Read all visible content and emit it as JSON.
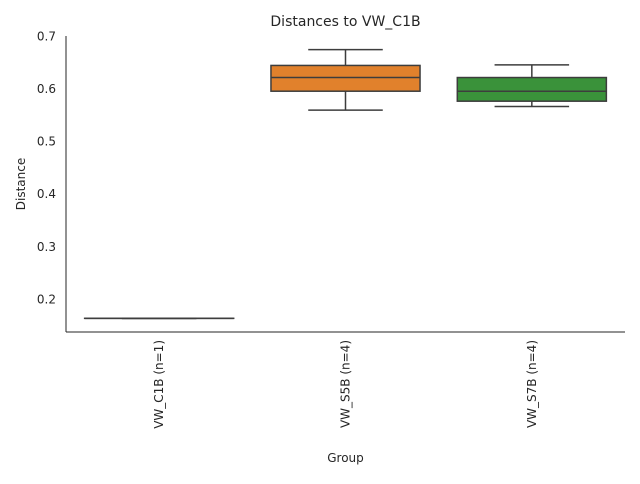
{
  "chart_data": {
    "type": "box",
    "title": "Distances to VW_C1B",
    "xlabel": "Group",
    "ylabel": "Distance",
    "ylim": [
      0.137,
      0.7
    ],
    "yticks": [
      0.2,
      0.3,
      0.4,
      0.5,
      0.6,
      0.7
    ],
    "ytick_labels": [
      "0.2",
      "0.3",
      "0.4",
      "0.5",
      "0.6",
      "0.7"
    ],
    "grid": false,
    "legend": "none",
    "categories": [
      "VW_C1B (n=1)",
      "VW_S5B (n=4)",
      "VW_S7B (n=4)"
    ],
    "boxes": [
      {
        "category": "VW_C1B (n=1)",
        "min": 0.163,
        "q1": 0.163,
        "median": 0.163,
        "q3": 0.163,
        "max": 0.163,
        "color": "#3274a1"
      },
      {
        "category": "VW_S5B (n=4)",
        "min": 0.559,
        "q1": 0.595,
        "median": 0.621,
        "q3": 0.644,
        "max": 0.674,
        "color": "#e1812c"
      },
      {
        "category": "VW_S7B (n=4)",
        "min": 0.566,
        "q1": 0.576,
        "median": 0.595,
        "q3": 0.621,
        "max": 0.645,
        "color": "#3a923a"
      }
    ]
  }
}
